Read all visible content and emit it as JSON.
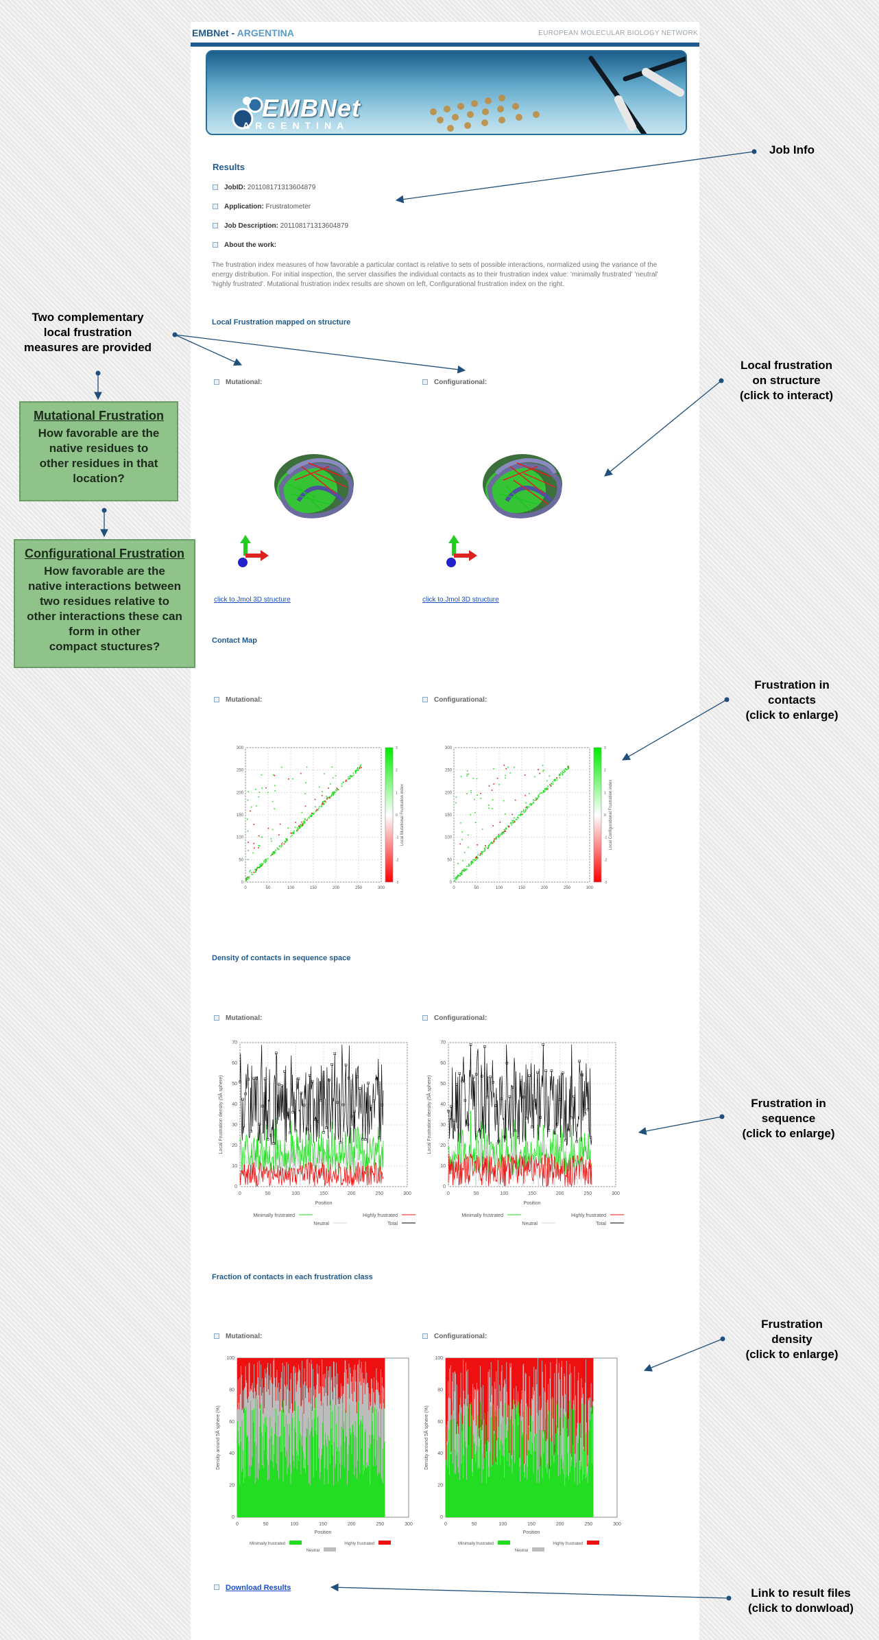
{
  "header": {
    "brand_main": "EMBNet",
    "brand_sep": " - ",
    "brand_country": "ARGENTINA",
    "network": "EUROPEAN MOLECULAR BIOLOGY NETWORK"
  },
  "banner": {
    "logo_text": "EMBNet",
    "logo_sub": "ARGENTINA"
  },
  "results": {
    "title": "Results",
    "jobid_label": "JobID:",
    "jobid_value": " 201108171313604879",
    "app_label": "Application:",
    "app_value": " Frustratometer",
    "jobdesc_label": "Job Description:",
    "jobdesc_value": " 201108171313604879",
    "about_label": "About the work:",
    "description": "The frustration index measures of how favorable a particular contact is relative to sets of possible interactions, normalized using the variance of the energy distribution. For initial inspection, the server classifies the individual contacts as to their frustration index value: 'minimally frustrated' 'neutral' 'highly frustrated'. Mutational frustration index results are shown on left, Configurational frustration index on the right."
  },
  "sections": {
    "local": "Local Frustration mapped on structure",
    "contact": "Contact Map",
    "density": "Density of contacts in sequence space",
    "fraction": "Fraction of contacts in each frustration class"
  },
  "labels": {
    "mutational": "Mutational:",
    "configurational": "Configurational:"
  },
  "links": {
    "jmol": "click to Jmol 3D structure",
    "download": "Download Results"
  },
  "annotations": {
    "job_info": "Job Info",
    "two_measures": [
      "Two complementary",
      "local frustration",
      "measures are provided"
    ],
    "mutational_title": "Mutational Frustration",
    "mutational_body": [
      "How favorable are the",
      "native residues to",
      "other residues in that",
      "location?"
    ],
    "config_title": "Configurational Frustration",
    "config_body": [
      "How favorable are the",
      "native interactions between",
      "two residues relative to",
      "other interactions these can",
      "form in other",
      "compact stuctures?"
    ],
    "local_struct": [
      "Local frustration",
      "on structure",
      "(click to interact)"
    ],
    "contacts": [
      "Frustration in",
      "contacts",
      "(click to enlarge)"
    ],
    "sequence": [
      "Frustration in",
      "sequence",
      "(click to enlarge)"
    ],
    "density": [
      "Frustration",
      "density",
      "(click to enlarge)"
    ],
    "download": [
      "Link to result files",
      "(click to donwload)"
    ]
  },
  "contact_axis": {
    "ticks": [
      "0",
      "50",
      "100",
      "150",
      "200",
      "250",
      "300"
    ],
    "cbar_mut": "Local Mutational Frustration index",
    "cbar_conf": "Local Configurational Frustration index",
    "cbar_ticks": [
      "-3",
      "-2",
      "-1",
      "0",
      "1",
      "2",
      "3"
    ]
  },
  "density_axis": {
    "ylabel": "Local Frustration density (5Å sphere)",
    "xlabel": "Position",
    "yticks": [
      "0",
      "10",
      "20",
      "30",
      "40",
      "50",
      "60",
      "70"
    ],
    "xticks": [
      "0",
      "50",
      "100",
      "150",
      "200",
      "250",
      "300"
    ],
    "legend": [
      "Minimally frustrated",
      "Highly frustrated",
      "Neutral",
      "Total"
    ]
  },
  "fraction_axis": {
    "ylabel": "Density around 5Å sphere (%)",
    "xlabel": "Position",
    "yticks": [
      "0",
      "20",
      "40",
      "60",
      "80",
      "100"
    ],
    "xticks": [
      "0",
      "50",
      "100",
      "150",
      "200",
      "250",
      "300"
    ],
    "legend": [
      "Minimally frustrated",
      "Highly frustrated",
      "Neutral"
    ]
  },
  "colors": {
    "minimal": "#22dd22",
    "highly": "#ee1111",
    "neutral": "#bdbdbd",
    "total": "#000000",
    "link": "#1a4fd0",
    "accent": "#1f5a8e"
  }
}
